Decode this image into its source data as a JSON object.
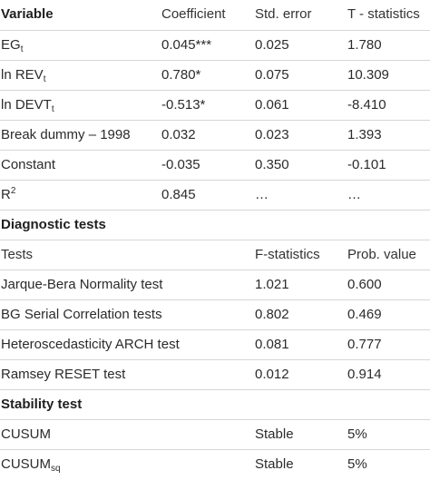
{
  "coef_header": {
    "variable": "Variable",
    "coefficient": "Coefficient",
    "std_error": "Std. error",
    "t_statistics": "T - statistics"
  },
  "coefficients": [
    {
      "name": "EG",
      "sub": "t",
      "coefficient": "0.045***",
      "std_error": "0.025",
      "t_stat": "1.780"
    },
    {
      "name": "ln REV",
      "sub": "t",
      "coefficient": "0.780*",
      "std_error": "0.075",
      "t_stat": "10.309"
    },
    {
      "name": "ln DEVT",
      "sub": "t",
      "coefficient": "-0.513*",
      "std_error": "0.061",
      "t_stat": "-8.410"
    },
    {
      "name": "Break dummy – 1998",
      "coefficient": "0.032",
      "std_error": "0.023",
      "t_stat": "1.393"
    },
    {
      "name": "Constant",
      "coefficient": "-0.035",
      "std_error": "0.350",
      "t_stat": "-0.101"
    },
    {
      "name": "R",
      "sup": "2",
      "coefficient": "0.845",
      "std_error": "…",
      "t_stat": "…"
    }
  ],
  "diagnostic": {
    "title": "Diagnostic tests",
    "header": {
      "tests": "Tests",
      "f_statistics": "F-statistics",
      "prob_value": "Prob. value"
    },
    "rows": [
      {
        "test": "Jarque-Bera Normality test",
        "f_stat": "1.021",
        "prob": "0.600"
      },
      {
        "test": "BG Serial Correlation tests",
        "f_stat": "0.802",
        "prob": "0.469"
      },
      {
        "test": "Heteroscedasticity ARCH test",
        "f_stat": "0.081",
        "prob": "0.777"
      },
      {
        "test": "Ramsey RESET test",
        "f_stat": "0.012",
        "prob": "0.914"
      }
    ]
  },
  "stability": {
    "title": "Stability test",
    "rows": [
      {
        "name": "CUSUM",
        "result": "Stable",
        "level": "5%"
      },
      {
        "name": "CUSUM",
        "sub": "sq",
        "result": "Stable",
        "level": "5%"
      }
    ]
  }
}
